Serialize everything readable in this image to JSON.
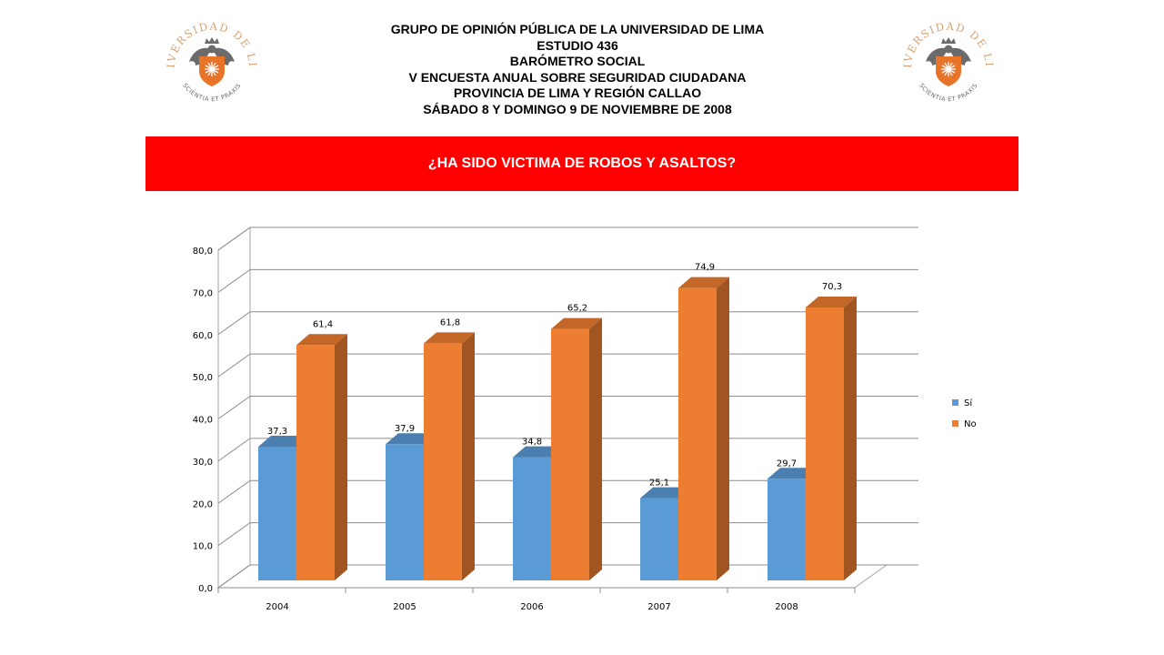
{
  "header": {
    "lines": [
      "GRUPO DE OPINIÓN PÚBLICA DE LA UNIVERSIDAD DE LIMA",
      "ESTUDIO 436",
      "BARÓMETRO SOCIAL",
      "V ENCUESTA ANUAL SOBRE SEGURIDAD CIUDADANA",
      "PROVINCIA DE LIMA Y REGIÓN CALLAO",
      "SÁBADO 8 Y DOMINGO 9 DE NOVIEMBRE DE 2008"
    ]
  },
  "logo": {
    "arc_text": "UNIVERSIDAD DE LIMA",
    "motto": "SCIENTIA ET PRAXIS",
    "colors": {
      "gold": "#d4a373",
      "shield": "#e8742a",
      "eagle": "#6b6b6b"
    }
  },
  "banner": {
    "title": "¿HA SIDO VICTIMA DE ROBOS Y ASALTOS?",
    "color": "#ff0000"
  },
  "chart_data": {
    "type": "bar",
    "style": "3d-clustered",
    "categories": [
      "2004",
      "2005",
      "2006",
      "2007",
      "2008"
    ],
    "series": [
      {
        "name": "Sí",
        "values": [
          37.3,
          37.9,
          34.8,
          25.1,
          29.7
        ],
        "labels": [
          "37,3",
          "37,9",
          "34,8",
          "25,1",
          "29,7"
        ],
        "color": "#5b9bd5"
      },
      {
        "name": "No",
        "values": [
          61.4,
          61.8,
          65.2,
          74.9,
          70.3
        ],
        "labels": [
          "61,4",
          "61,8",
          "65,2",
          "74,9",
          "70,3"
        ],
        "color": "#ed7d31"
      }
    ],
    "ylim": [
      0,
      80
    ],
    "yticks": [
      "0,0",
      "10,0",
      "20,0",
      "30,0",
      "40,0",
      "50,0",
      "60,0",
      "70,0",
      "80,0"
    ],
    "grid": true,
    "legend_position": "right"
  }
}
